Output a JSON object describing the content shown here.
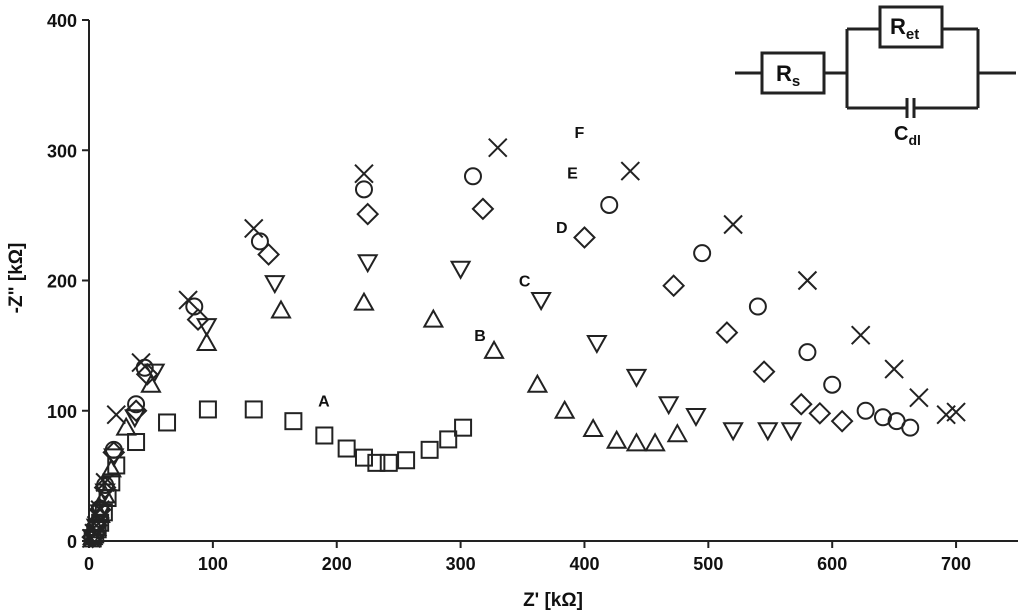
{
  "chart_data": {
    "type": "scatter",
    "title": "",
    "xlabel": "Z' [kΩ]",
    "ylabel": "-Z\" [kΩ]",
    "xlim": [
      0,
      750
    ],
    "ylim": [
      0,
      400
    ],
    "xticks": [
      0,
      100,
      200,
      300,
      400,
      500,
      600,
      700
    ],
    "yticks": [
      0,
      100,
      200,
      300,
      400
    ],
    "grid": false,
    "legend": "none",
    "series": [
      {
        "name": "A",
        "marker": "square",
        "label_at": [
          185,
          108
        ],
        "points": [
          [
            3,
            2
          ],
          [
            5,
            5
          ],
          [
            7,
            9
          ],
          [
            9,
            14
          ],
          [
            12,
            22
          ],
          [
            15,
            33
          ],
          [
            18,
            45
          ],
          [
            22,
            58
          ],
          [
            38,
            76
          ],
          [
            63,
            91
          ],
          [
            96,
            101
          ],
          [
            133,
            101
          ],
          [
            165,
            92
          ],
          [
            190,
            81
          ],
          [
            208,
            71
          ],
          [
            222,
            64
          ],
          [
            232,
            60
          ],
          [
            242,
            60
          ],
          [
            256,
            62
          ],
          [
            275,
            70
          ],
          [
            290,
            78
          ],
          [
            302,
            87
          ]
        ]
      },
      {
        "name": "B",
        "marker": "triangle-up",
        "label_at": [
          311,
          158
        ],
        "points": [
          [
            3,
            3
          ],
          [
            6,
            10
          ],
          [
            9,
            20
          ],
          [
            13,
            35
          ],
          [
            18,
            55
          ],
          [
            30,
            87
          ],
          [
            50,
            120
          ],
          [
            95,
            152
          ],
          [
            155,
            177
          ],
          [
            222,
            183
          ],
          [
            278,
            170
          ],
          [
            327,
            146
          ],
          [
            362,
            120
          ],
          [
            384,
            100
          ],
          [
            407,
            86
          ],
          [
            426,
            77
          ],
          [
            442,
            75
          ],
          [
            457,
            75
          ],
          [
            475,
            82
          ]
        ]
      },
      {
        "name": "C",
        "marker": "triangle-down",
        "label_at": [
          347,
          200
        ],
        "points": [
          [
            3,
            3
          ],
          [
            6,
            11
          ],
          [
            9,
            22
          ],
          [
            13,
            38
          ],
          [
            20,
            65
          ],
          [
            37,
            95
          ],
          [
            53,
            130
          ],
          [
            95,
            165
          ],
          [
            150,
            198
          ],
          [
            225,
            214
          ],
          [
            300,
            209
          ],
          [
            365,
            185
          ],
          [
            410,
            152
          ],
          [
            442,
            126
          ],
          [
            468,
            105
          ],
          [
            490,
            96
          ],
          [
            520,
            85
          ],
          [
            548,
            85
          ],
          [
            567,
            85
          ]
        ]
      },
      {
        "name": "D",
        "marker": "diamond",
        "label_at": [
          377,
          241
        ],
        "points": [
          [
            3,
            3
          ],
          [
            6,
            12
          ],
          [
            9,
            24
          ],
          [
            13,
            41
          ],
          [
            20,
            68
          ],
          [
            38,
            100
          ],
          [
            47,
            128
          ],
          [
            88,
            170
          ],
          [
            145,
            220
          ],
          [
            225,
            251
          ],
          [
            318,
            255
          ],
          [
            400,
            233
          ],
          [
            472,
            196
          ],
          [
            515,
            160
          ],
          [
            545,
            130
          ],
          [
            575,
            105
          ],
          [
            590,
            98
          ],
          [
            608,
            92
          ]
        ]
      },
      {
        "name": "E",
        "marker": "circle",
        "label_at": [
          386,
          283
        ],
        "points": [
          [
            3,
            3
          ],
          [
            6,
            12
          ],
          [
            9,
            25
          ],
          [
            13,
            43
          ],
          [
            20,
            70
          ],
          [
            38,
            105
          ],
          [
            45,
            133
          ],
          [
            85,
            180
          ],
          [
            138,
            230
          ],
          [
            222,
            270
          ],
          [
            310,
            280
          ],
          [
            420,
            258
          ],
          [
            495,
            221
          ],
          [
            540,
            180
          ],
          [
            580,
            145
          ],
          [
            600,
            120
          ],
          [
            627,
            100
          ],
          [
            641,
            95
          ],
          [
            652,
            92
          ],
          [
            663,
            87
          ]
        ]
      },
      {
        "name": "F",
        "marker": "cross",
        "label_at": [
          392,
          314
        ],
        "points": [
          [
            2,
            2
          ],
          [
            4,
            6
          ],
          [
            6,
            12
          ],
          [
            9,
            24
          ],
          [
            13,
            45
          ],
          [
            22,
            97
          ],
          [
            42,
            137
          ],
          [
            80,
            185
          ],
          [
            133,
            240
          ],
          [
            222,
            282
          ],
          [
            330,
            302
          ],
          [
            437,
            284
          ],
          [
            520,
            243
          ],
          [
            580,
            200
          ],
          [
            623,
            158
          ],
          [
            650,
            132
          ],
          [
            670,
            110
          ],
          [
            692,
            97
          ],
          [
            700,
            99
          ]
        ]
      }
    ]
  },
  "circuit": {
    "rs": {
      "main": "R",
      "sub": "s"
    },
    "ret": {
      "main": "R",
      "sub": "et"
    },
    "cdl": {
      "main": "C",
      "sub": "dl"
    }
  }
}
